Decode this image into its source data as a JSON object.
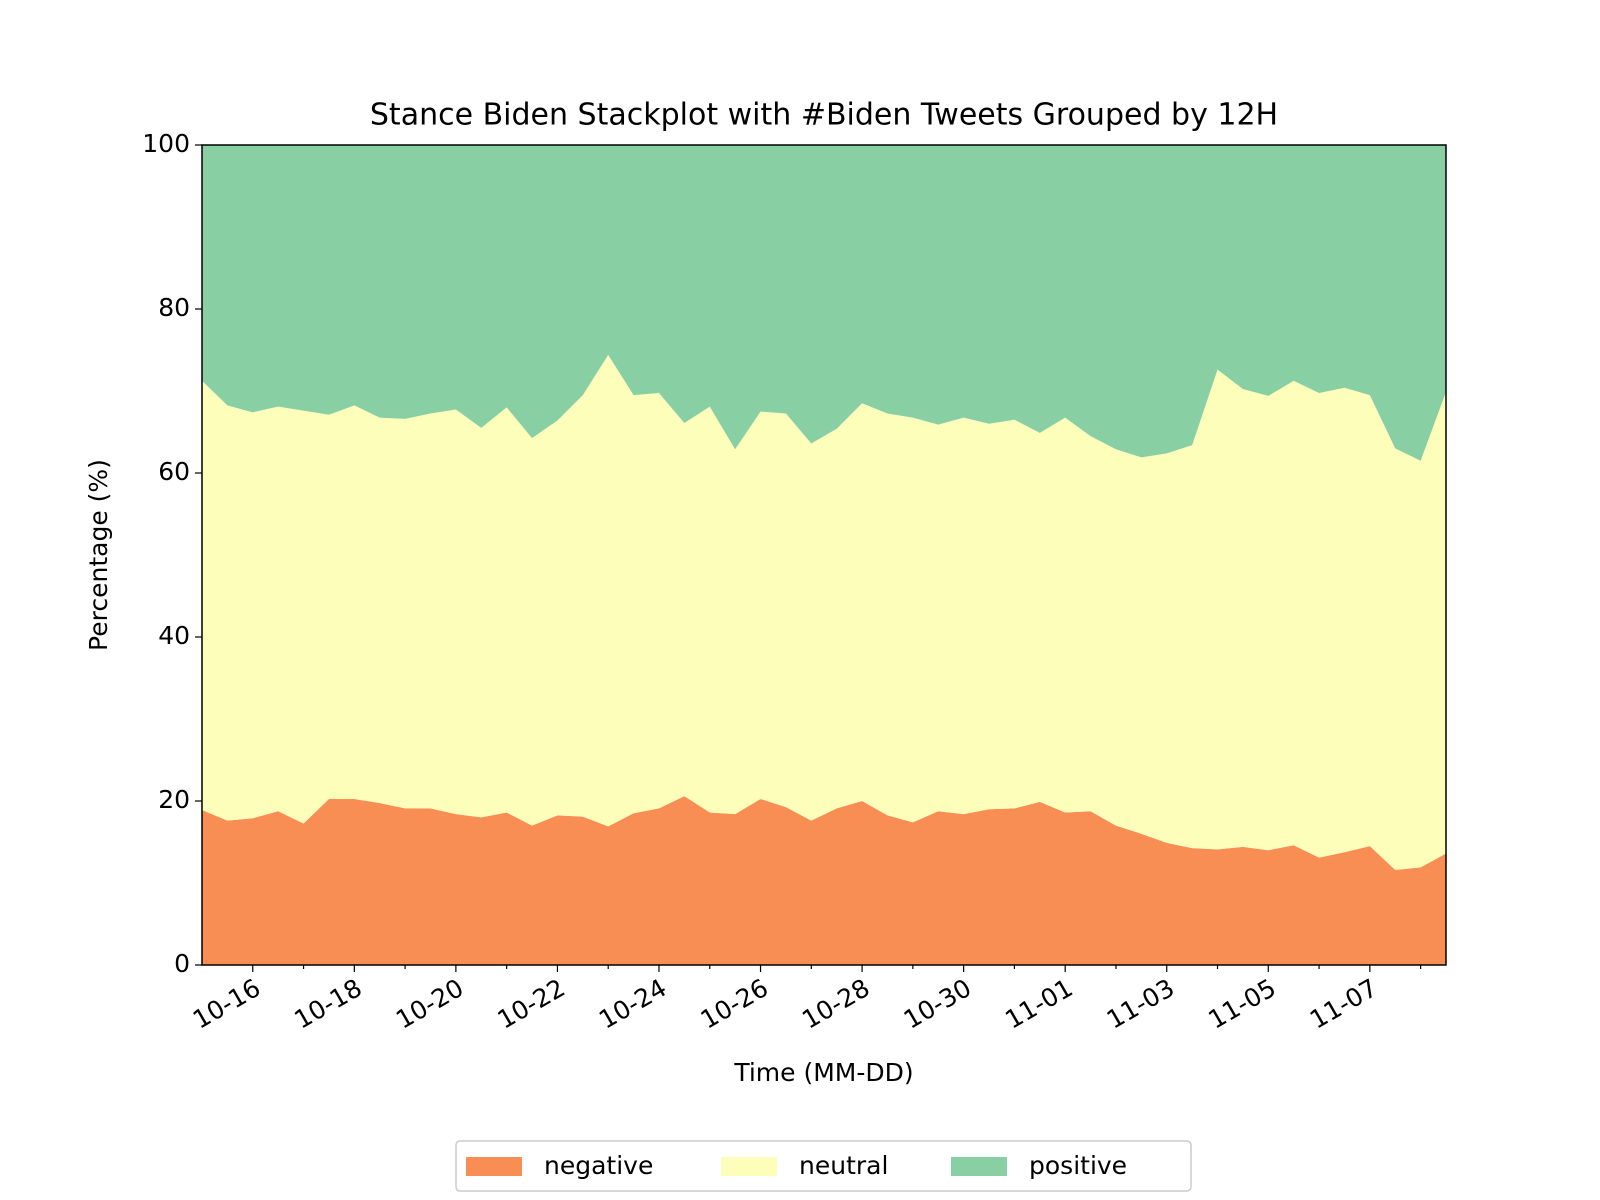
{
  "chart_data": {
    "type": "stackplot",
    "title": "Stance Biden Stackplot with #Biden Tweets Grouped by 12H",
    "xlabel": "Time (MM-DD)",
    "ylabel": "Percentage (%)",
    "x": [
      0,
      0.5,
      1,
      1.5,
      2,
      2.5,
      3,
      3.5,
      4,
      4.5,
      5,
      5.5,
      6,
      6.5,
      7,
      7.5,
      8,
      8.5,
      9,
      9.5,
      10,
      10.5,
      11,
      11.5,
      12,
      12.5,
      13,
      13.5,
      14,
      14.5,
      15,
      15.5,
      16,
      16.5,
      17,
      17.5,
      18,
      18.5,
      19,
      19.5,
      20,
      20.5,
      21,
      21.5,
      22,
      22.5,
      23,
      23.5,
      24,
      24.5
    ],
    "xlim": [
      0,
      24.5
    ],
    "xticks": [
      {
        "value": 1,
        "label": "10-16"
      },
      {
        "value": 3,
        "label": "10-18"
      },
      {
        "value": 5,
        "label": "10-20"
      },
      {
        "value": 7,
        "label": "10-22"
      },
      {
        "value": 9,
        "label": "10-24"
      },
      {
        "value": 11,
        "label": "10-26"
      },
      {
        "value": 13,
        "label": "10-28"
      },
      {
        "value": 15,
        "label": "10-30"
      },
      {
        "value": 17,
        "label": "11-01"
      },
      {
        "value": 19,
        "label": "11-03"
      },
      {
        "value": 21,
        "label": "11-05"
      },
      {
        "value": 23,
        "label": "11-07"
      }
    ],
    "xminorticks": [
      2,
      4,
      6,
      8,
      10,
      12,
      14,
      16,
      18,
      20,
      22,
      24
    ],
    "ylim": [
      0,
      100
    ],
    "yticks": [
      0,
      20,
      40,
      60,
      80,
      100
    ],
    "legend": "lower center",
    "series": [
      {
        "name": "negative",
        "color": "#f98e55",
        "values": [
          18.9,
          17.6,
          17.9,
          18.75,
          17.25,
          20.25,
          20.25,
          19.75,
          19.1,
          19.1,
          18.4,
          18,
          18.6,
          17,
          18.25,
          18.1,
          16.9,
          18.5,
          19.1,
          20.6,
          18.6,
          18.4,
          20.25,
          19.25,
          17.6,
          19.1,
          20,
          18.25,
          17.4,
          18.75,
          18.4,
          19,
          19.1,
          19.9,
          18.6,
          18.75,
          17,
          16,
          14.9,
          14.25,
          14.1,
          14.4,
          14,
          14.6,
          13.1,
          13.75,
          14.5,
          11.6,
          11.9,
          13.6
        ]
      },
      {
        "name": "neutral",
        "color": "#fefebb",
        "values": [
          52.35,
          50.65,
          49.5,
          49.35,
          50.35,
          46.85,
          48,
          47,
          47.5,
          48.15,
          49.35,
          47.5,
          49.4,
          47.25,
          48.15,
          51.4,
          57.5,
          51,
          50.65,
          45.5,
          49.5,
          44.5,
          47.25,
          48,
          46,
          46.3,
          48.5,
          49,
          49.35,
          47.15,
          48.35,
          47,
          47.4,
          45,
          48.15,
          45.75,
          45.9,
          45.9,
          47.5,
          49.15,
          58.5,
          55.85,
          55.4,
          56.65,
          56.65,
          56.65,
          55,
          51.4,
          49.6,
          56.3
        ]
      },
      {
        "name": "positive",
        "color": "#88cfa4",
        "values": [
          28.75,
          31.75,
          32.6,
          31.9,
          32.4,
          32.9,
          31.75,
          33.25,
          33.4,
          32.75,
          32.25,
          34.5,
          32,
          35.75,
          33.6,
          30.5,
          25.6,
          30.5,
          30.25,
          33.9,
          31.9,
          37.1,
          32.5,
          32.75,
          36.4,
          34.6,
          31.5,
          32.75,
          33.25,
          34.1,
          33.25,
          34,
          33.5,
          35.1,
          33.25,
          35.5,
          37.1,
          38.1,
          37.6,
          36.6,
          27.4,
          29.75,
          30.6,
          28.75,
          30.25,
          29.6,
          30.5,
          37,
          38.5,
          30.1
        ]
      }
    ]
  }
}
